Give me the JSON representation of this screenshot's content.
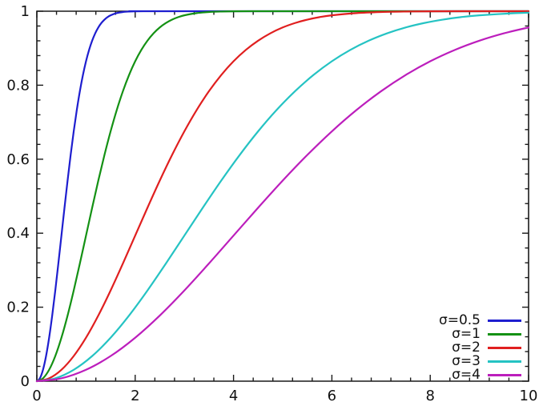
{
  "figure": {
    "background": "#ffffff",
    "axis_color": "#1a1a1a",
    "text_color": "#111111"
  },
  "chart_data": {
    "type": "line",
    "title": "",
    "xlabel": "",
    "ylabel": "",
    "xlim": [
      0,
      10
    ],
    "ylim": [
      0,
      1
    ],
    "x_major_ticks": [
      0,
      2,
      4,
      6,
      8,
      10
    ],
    "x_tick_labels": [
      "0",
      "2",
      "4",
      "6",
      "8",
      "10"
    ],
    "x_minor_step": 0.4,
    "y_major_ticks": [
      0,
      0.2,
      0.4,
      0.6,
      0.8,
      1
    ],
    "y_tick_labels": [
      "0",
      "0.2",
      "0.4",
      "0.6",
      "0.8",
      "1"
    ],
    "y_minor_step": 0.04,
    "grid": false,
    "legend_position": "inside-bottom-right",
    "curve_model": "Rayleigh CDF: F(x) = 1 - exp(-x^2 / (2*sigma^2))",
    "series": [
      {
        "name": "σ=0.5",
        "sigma": 0.5,
        "color": "#1e1ecf",
        "points": [
          [
            0,
            0
          ],
          [
            0.0625,
            0.0078
          ],
          [
            0.125,
            0.0308
          ],
          [
            0.1875,
            0.0679
          ],
          [
            0.25,
            0.1175
          ],
          [
            0.3125,
            0.1774
          ],
          [
            0.375,
            0.2452
          ],
          [
            0.4375,
            0.3181
          ],
          [
            0.5,
            0.3935
          ],
          [
            0.5625,
            0.4689
          ],
          [
            0.625,
            0.5422
          ],
          [
            0.6875,
            0.6114
          ],
          [
            0.75,
            0.6753
          ],
          [
            0.8125,
            0.7329
          ],
          [
            0.875,
            0.7837
          ],
          [
            0.9375,
            0.8276
          ],
          [
            1,
            0.8647
          ],
          [
            1.0625,
            0.8954
          ],
          [
            1.125,
            0.9204
          ],
          [
            1.1875,
            0.9404
          ],
          [
            1.25,
            0.9561
          ],
          [
            1.3125,
            0.9681
          ],
          [
            1.375,
            0.9772
          ],
          [
            1.4375,
            0.984
          ],
          [
            1.5,
            0.9889
          ],
          [
            1.625,
            0.9949
          ],
          [
            1.75,
            0.9978
          ],
          [
            1.875,
            0.9991
          ],
          [
            2,
            0.9997
          ],
          [
            2.25,
            1
          ],
          [
            2.5,
            1
          ],
          [
            10,
            1
          ]
        ]
      },
      {
        "name": "σ=1",
        "sigma": 1,
        "color": "#149114",
        "points": [
          [
            0,
            0
          ],
          [
            0.125,
            0.0078
          ],
          [
            0.25,
            0.0308
          ],
          [
            0.375,
            0.0679
          ],
          [
            0.5,
            0.1175
          ],
          [
            0.625,
            0.1774
          ],
          [
            0.75,
            0.2452
          ],
          [
            0.875,
            0.3181
          ],
          [
            1,
            0.3935
          ],
          [
            1.125,
            0.4689
          ],
          [
            1.25,
            0.5422
          ],
          [
            1.375,
            0.6114
          ],
          [
            1.5,
            0.6753
          ],
          [
            1.625,
            0.7329
          ],
          [
            1.75,
            0.7837
          ],
          [
            1.875,
            0.8276
          ],
          [
            2,
            0.8647
          ],
          [
            2.125,
            0.8954
          ],
          [
            2.25,
            0.9204
          ],
          [
            2.375,
            0.9404
          ],
          [
            2.5,
            0.9561
          ],
          [
            2.625,
            0.9681
          ],
          [
            2.75,
            0.9772
          ],
          [
            2.875,
            0.984
          ],
          [
            3,
            0.9889
          ],
          [
            3.25,
            0.9949
          ],
          [
            3.5,
            0.9978
          ],
          [
            3.75,
            0.9991
          ],
          [
            4,
            0.9997
          ],
          [
            4.5,
            1
          ],
          [
            5,
            1
          ],
          [
            10,
            1
          ]
        ]
      },
      {
        "name": "σ=2",
        "sigma": 2,
        "color": "#e01f1f",
        "points": [
          [
            0,
            0
          ],
          [
            0.25,
            0.0078
          ],
          [
            0.5,
            0.0308
          ],
          [
            0.75,
            0.0679
          ],
          [
            1,
            0.1175
          ],
          [
            1.25,
            0.1774
          ],
          [
            1.5,
            0.2452
          ],
          [
            1.75,
            0.3181
          ],
          [
            2,
            0.3935
          ],
          [
            2.25,
            0.4689
          ],
          [
            2.5,
            0.5422
          ],
          [
            2.75,
            0.6114
          ],
          [
            3,
            0.6753
          ],
          [
            3.25,
            0.7329
          ],
          [
            3.5,
            0.7837
          ],
          [
            3.75,
            0.8276
          ],
          [
            4,
            0.8647
          ],
          [
            4.25,
            0.8954
          ],
          [
            4.5,
            0.9204
          ],
          [
            4.75,
            0.9404
          ],
          [
            5,
            0.9561
          ],
          [
            5.25,
            0.9681
          ],
          [
            5.5,
            0.9772
          ],
          [
            5.75,
            0.984
          ],
          [
            6,
            0.9889
          ],
          [
            6.5,
            0.9949
          ],
          [
            7,
            0.9978
          ],
          [
            7.5,
            0.9991
          ],
          [
            8,
            0.9997
          ],
          [
            9,
            1
          ],
          [
            10,
            1
          ]
        ]
      },
      {
        "name": "σ=3",
        "sigma": 3,
        "color": "#25c3c3",
        "points": [
          [
            0,
            0
          ],
          [
            0.375,
            0.0078
          ],
          [
            0.75,
            0.0308
          ],
          [
            1.125,
            0.0679
          ],
          [
            1.5,
            0.1175
          ],
          [
            1.875,
            0.1774
          ],
          [
            2.25,
            0.2452
          ],
          [
            2.625,
            0.3181
          ],
          [
            3,
            0.3935
          ],
          [
            3.375,
            0.4689
          ],
          [
            3.75,
            0.5422
          ],
          [
            4.125,
            0.6114
          ],
          [
            4.5,
            0.6753
          ],
          [
            4.875,
            0.7329
          ],
          [
            5.25,
            0.7837
          ],
          [
            5.625,
            0.8276
          ],
          [
            6,
            0.8647
          ],
          [
            6.375,
            0.8954
          ],
          [
            6.75,
            0.9204
          ],
          [
            7.125,
            0.9404
          ],
          [
            7.5,
            0.9561
          ],
          [
            7.875,
            0.9681
          ],
          [
            8.25,
            0.9772
          ],
          [
            8.625,
            0.984
          ],
          [
            9,
            0.9889
          ],
          [
            9.75,
            0.9949
          ],
          [
            10,
            0.9961
          ]
        ]
      },
      {
        "name": "σ=4",
        "sigma": 4,
        "color": "#bc1ebc",
        "points": [
          [
            0,
            0
          ],
          [
            0.5,
            0.0078
          ],
          [
            1,
            0.0308
          ],
          [
            1.5,
            0.0679
          ],
          [
            2,
            0.1175
          ],
          [
            2.5,
            0.1774
          ],
          [
            3,
            0.2452
          ],
          [
            3.5,
            0.3181
          ],
          [
            4,
            0.3935
          ],
          [
            4.5,
            0.4689
          ],
          [
            5,
            0.5422
          ],
          [
            5.5,
            0.6114
          ],
          [
            6,
            0.6753
          ],
          [
            6.5,
            0.7329
          ],
          [
            7,
            0.7837
          ],
          [
            7.5,
            0.8276
          ],
          [
            8,
            0.8647
          ],
          [
            8.5,
            0.8954
          ],
          [
            9,
            0.9204
          ],
          [
            9.5,
            0.9404
          ],
          [
            10,
            0.9561
          ]
        ]
      }
    ]
  }
}
